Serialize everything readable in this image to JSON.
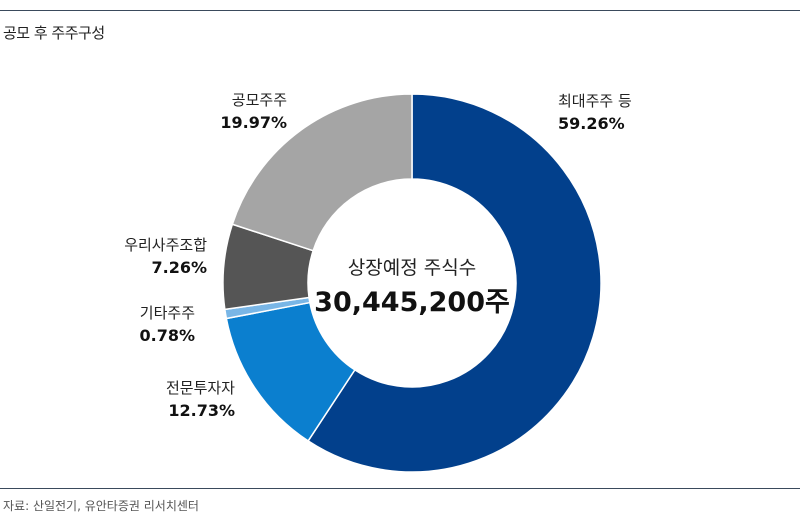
{
  "title": "공모 후 주주구성",
  "source": "자료: 산일전기, 유안타증권 리서치센터",
  "center": {
    "label": "상장예정 주식수",
    "value": "30,445,200주"
  },
  "chart_data": {
    "type": "pie",
    "title": "공모 후 주주구성",
    "unit": "%",
    "slices": [
      {
        "name": "최대주주 등",
        "value": 59.26,
        "label": "59.26%",
        "color": "#02408c"
      },
      {
        "name": "전문투자자",
        "value": 12.73,
        "label": "12.73%",
        "color": "#0b7fcf"
      },
      {
        "name": "기타주주",
        "value": 0.78,
        "label": "0.78%",
        "color": "#79b6e6"
      },
      {
        "name": "우리사주조합",
        "value": 7.26,
        "label": "7.26%",
        "color": "#555555"
      },
      {
        "name": "공모주주",
        "value": 19.97,
        "label": "19.97%",
        "color": "#a5a5a5"
      }
    ]
  }
}
